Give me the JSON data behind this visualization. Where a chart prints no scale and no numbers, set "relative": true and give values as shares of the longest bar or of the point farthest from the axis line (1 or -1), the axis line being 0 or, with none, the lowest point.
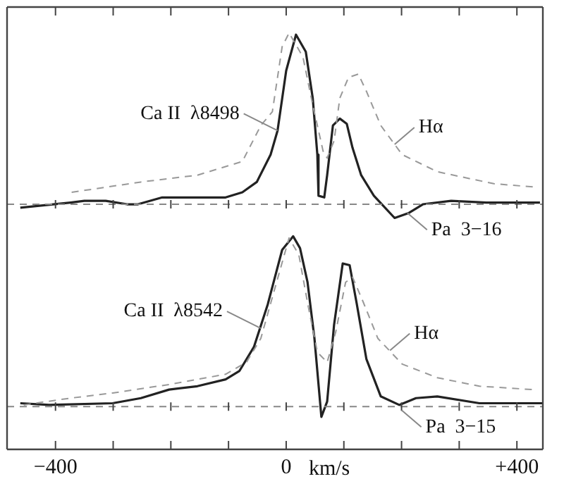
{
  "chart_data": [
    {
      "type": "line",
      "relative": true,
      "marker": "none",
      "legend": false,
      "tick_labels": false,
      "xlim": [
        -484,
        445
      ],
      "xticks": [
        {
          "value": -400,
          "label": null
        },
        {
          "value": -300,
          "label": null
        },
        {
          "value": -200,
          "label": null
        },
        {
          "value": -100,
          "label": null
        },
        {
          "value": 0,
          "label": null
        },
        {
          "value": 100,
          "label": null
        },
        {
          "value": 200,
          "label": null
        },
        {
          "value": 300,
          "label": null
        },
        {
          "value": 400,
          "label": null
        }
      ],
      "series": [
        {
          "color": "#999999",
          "line_style": "dashed",
          "x": [
            -372,
            -252,
            -154,
            -76,
            -44,
            -24,
            -7,
            5,
            29,
            46,
            64,
            71,
            83,
            93,
            108,
            125,
            139,
            164,
            201,
            262,
            360,
            433
          ],
          "values": [
            0.07,
            0.13,
            0.17,
            0.25,
            0.46,
            0.54,
            0.92,
            1.0,
            0.86,
            0.58,
            0.31,
            0.27,
            0.37,
            0.62,
            0.74,
            0.76,
            0.66,
            0.46,
            0.29,
            0.19,
            0.12,
            0.1
          ]
        },
        {
          "color": "#222222",
          "line_style": "solid",
          "x": [
            -461,
            -374,
            -350,
            -313,
            -276,
            -257,
            -215,
            -166,
            -105,
            -76,
            -51,
            -27,
            -15,
            0,
            17,
            34,
            46,
            54,
            56,
            66,
            71,
            81,
            93,
            105,
            115,
            130,
            152,
            188,
            213,
            237,
            286,
            347,
            440
          ],
          "values": [
            -0.02,
            0.01,
            0.02,
            0.02,
            0.0,
            0.0,
            0.04,
            0.04,
            0.04,
            0.07,
            0.13,
            0.29,
            0.43,
            0.78,
            0.99,
            0.89,
            0.62,
            0.29,
            0.05,
            0.04,
            0.17,
            0.46,
            0.5,
            0.47,
            0.33,
            0.17,
            0.05,
            -0.08,
            -0.05,
            0.0,
            0.02,
            0.01,
            0.01
          ]
        }
      ],
      "ref_lines": [
        {
          "axis": "y",
          "value": 0,
          "color": "#888888",
          "line_style": "dashed"
        }
      ],
      "annotations": [
        {
          "text": "Ca II  λ8498",
          "x": -15,
          "y": 0.43
        },
        {
          "text": "Hα",
          "x": 188,
          "y": 0.35
        },
        {
          "text": "Pa  3−16",
          "x": 210,
          "y": -0.05
        }
      ]
    },
    {
      "type": "line",
      "relative": true,
      "marker": "none",
      "legend": false,
      "xlabel": "km/s",
      "xlim": [
        -484,
        445
      ],
      "xticks": [
        {
          "value": -400,
          "label": "−400"
        },
        {
          "value": -300,
          "label": null
        },
        {
          "value": -200,
          "label": null
        },
        {
          "value": -100,
          "label": null
        },
        0,
        {
          "value": 100,
          "label": null
        },
        {
          "value": 200,
          "label": null
        },
        {
          "value": 300,
          "label": null
        },
        {
          "value": 400,
          "label": "+400"
        }
      ],
      "series": [
        {
          "color": "#999999",
          "line_style": "dashed",
          "x": [
            -455,
            -374,
            -301,
            -203,
            -105,
            -69,
            -44,
            -20,
            5,
            22,
            37,
            54,
            71,
            86,
            103,
            115,
            134,
            159,
            201,
            262,
            335,
            428
          ],
          "values": [
            0.01,
            0.05,
            0.08,
            0.13,
            0.19,
            0.26,
            0.4,
            0.69,
            0.99,
            0.89,
            0.61,
            0.32,
            0.26,
            0.44,
            0.73,
            0.76,
            0.61,
            0.4,
            0.25,
            0.17,
            0.12,
            0.1
          ]
        },
        {
          "color": "#222222",
          "line_style": "solid",
          "x": [
            -461,
            -411,
            -301,
            -252,
            -203,
            -154,
            -105,
            -81,
            -56,
            -32,
            -7,
            12,
            24,
            37,
            49,
            61,
            71,
            83,
            98,
            110,
            122,
            139,
            164,
            196,
            225,
            262,
            335,
            445
          ],
          "values": [
            0.02,
            0.01,
            0.02,
            0.05,
            0.1,
            0.12,
            0.16,
            0.21,
            0.35,
            0.6,
            0.92,
            1.0,
            0.93,
            0.73,
            0.4,
            -0.06,
            0.03,
            0.48,
            0.84,
            0.83,
            0.61,
            0.28,
            0.06,
            0.01,
            0.05,
            0.06,
            0.02,
            0.02
          ]
        }
      ],
      "ref_lines": [
        {
          "axis": "y",
          "value": 0,
          "color": "#888888",
          "line_style": "dashed"
        }
      ],
      "annotations": [
        {
          "text": "Ca II  λ8542",
          "x": -44,
          "y": 0.46
        },
        {
          "text": "Hα",
          "x": 180,
          "y": 0.33
        },
        {
          "text": "Pa  3−15",
          "x": 200,
          "y": -0.02
        }
      ]
    }
  ]
}
